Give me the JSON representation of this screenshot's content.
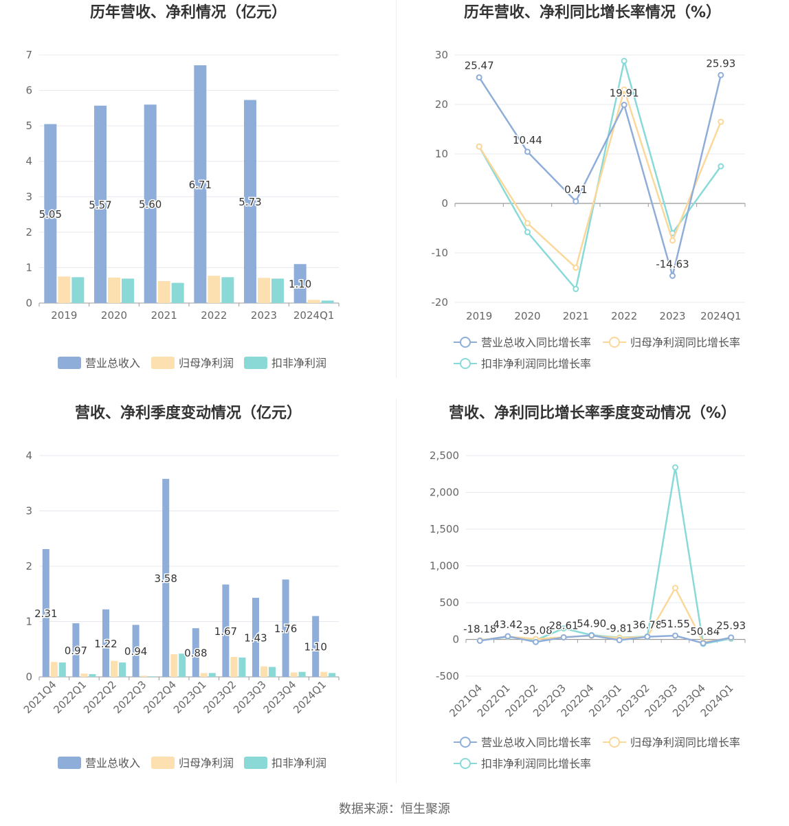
{
  "footer": "数据来源：恒生聚源",
  "legend_labels": {
    "bars": [
      "营业总收入",
      "归母净利润",
      "扣非净利润"
    ],
    "lines": [
      "营业总收入同比增长率",
      "归母净利润同比增长率",
      "扣非净利润同比增长率"
    ]
  },
  "colors": {
    "revenue": "#8eadd9",
    "net_profit": "#fde0b0",
    "deducted_net_profit": "#8bd9d6",
    "revenue_line": "#8eadd9",
    "net_profit_line": "#fbd79a",
    "deducted_line": "#88dad8"
  },
  "chart_data": [
    {
      "id": "annual_bar",
      "type": "bar",
      "title": "历年营收、净利情况（亿元）",
      "categories": [
        "2019",
        "2020",
        "2021",
        "2022",
        "2023",
        "2024Q1"
      ],
      "series": [
        {
          "name": "营业总收入",
          "values": [
            5.05,
            5.57,
            5.6,
            6.71,
            5.73,
            1.1
          ],
          "labels": [
            "5.05",
            "5.57",
            "5.60",
            "6.71",
            "5.73",
            "1.10"
          ]
        },
        {
          "name": "归母净利润",
          "values": [
            0.75,
            0.72,
            0.62,
            0.77,
            0.71,
            0.09
          ]
        },
        {
          "name": "扣非净利润",
          "values": [
            0.73,
            0.69,
            0.57,
            0.73,
            0.69,
            0.07
          ]
        }
      ],
      "yticks": [
        "0",
        "1",
        "2",
        "3",
        "4",
        "5",
        "6",
        "7"
      ],
      "ylim": [
        0,
        7
      ],
      "xlabel": "",
      "ylabel": "",
      "grid": true,
      "legend": "bottom"
    },
    {
      "id": "annual_growth",
      "type": "line",
      "title": "历年营收、净利同比增长率情况（%）",
      "categories": [
        "2019",
        "2020",
        "2021",
        "2022",
        "2023",
        "2024Q1"
      ],
      "series": [
        {
          "name": "营业总收入同比增长率",
          "values": [
            25.47,
            10.44,
            0.41,
            19.91,
            -14.63,
            25.93
          ],
          "labels": [
            "25.47",
            "10.44",
            "0.41",
            "19.91",
            "-14.63",
            "25.93"
          ]
        },
        {
          "name": "归母净利润同比增长率",
          "values": [
            11.5,
            -4,
            -13,
            23,
            -7.5,
            16.5
          ]
        },
        {
          "name": "扣非净利润同比增长率",
          "values": [
            11.5,
            -5.8,
            -17.3,
            28.8,
            -6,
            7.5
          ]
        }
      ],
      "yticks": [
        "-20",
        "-10",
        "0",
        "10",
        "20",
        "30"
      ],
      "ylim": [
        -20,
        30
      ],
      "xlabel": "",
      "ylabel": "",
      "grid": true,
      "legend": "bottom"
    },
    {
      "id": "quarterly_bar",
      "type": "bar",
      "title": "营收、净利季度变动情况（亿元）",
      "categories": [
        "2021Q4",
        "2022Q1",
        "2022Q2",
        "2022Q3",
        "2022Q4",
        "2023Q1",
        "2023Q2",
        "2023Q3",
        "2023Q4",
        "2024Q1"
      ],
      "series": [
        {
          "name": "营业总收入",
          "values": [
            2.31,
            0.97,
            1.22,
            0.94,
            3.58,
            0.88,
            1.67,
            1.43,
            1.76,
            1.1
          ],
          "labels": [
            "2.31",
            "0.97",
            "1.22",
            "0.94",
            "3.58",
            "0.88",
            "1.67",
            "1.43",
            "1.76",
            "1.10"
          ]
        },
        {
          "name": "归母净利润",
          "values": [
            0.27,
            0.06,
            0.29,
            0.02,
            0.41,
            0.07,
            0.36,
            0.19,
            0.08,
            0.09
          ]
        },
        {
          "name": "扣非净利润",
          "values": [
            0.26,
            0.05,
            0.26,
            0.01,
            0.42,
            0.07,
            0.35,
            0.18,
            0.09,
            0.07
          ]
        }
      ],
      "yticks": [
        "0",
        "1",
        "2",
        "3",
        "4"
      ],
      "ylim": [
        0,
        4
      ],
      "xlabel": "",
      "ylabel": "",
      "grid": true,
      "legend": "bottom"
    },
    {
      "id": "quarterly_growth",
      "type": "line",
      "title": "营收、净利同比增长率季度变动情况（%）",
      "categories": [
        "2021Q4",
        "2022Q1",
        "2022Q2",
        "2022Q3",
        "2022Q4",
        "2023Q1",
        "2023Q2",
        "2023Q3",
        "2023Q4",
        "2024Q1"
      ],
      "series": [
        {
          "name": "营业总收入同比增长率",
          "values": [
            -18.18,
            43.42,
            -35.08,
            28.61,
            54.9,
            -9.81,
            36.78,
            51.55,
            -50.84,
            25.93
          ],
          "labels": [
            "-18.18",
            "43.42",
            "-35.08",
            "28.61",
            "54.90",
            "-9.81",
            "36.78",
            "51.55",
            "-50.84",
            "25.93"
          ]
        },
        {
          "name": "归母净利润同比增长率",
          "values": [
            -10,
            40,
            5,
            30,
            50,
            20,
            35,
            700,
            -40,
            20
          ]
        },
        {
          "name": "扣非净利润同比增长率",
          "values": [
            -15,
            35,
            -10,
            150,
            60,
            25,
            40,
            2340,
            -60,
            10
          ]
        }
      ],
      "yticks": [
        "-500",
        "0",
        "500",
        "1,000",
        "1,500",
        "2,000",
        "2,500"
      ],
      "ylim": [
        -500,
        2500
      ],
      "xlabel": "",
      "ylabel": "",
      "grid": true,
      "legend": "bottom"
    }
  ]
}
